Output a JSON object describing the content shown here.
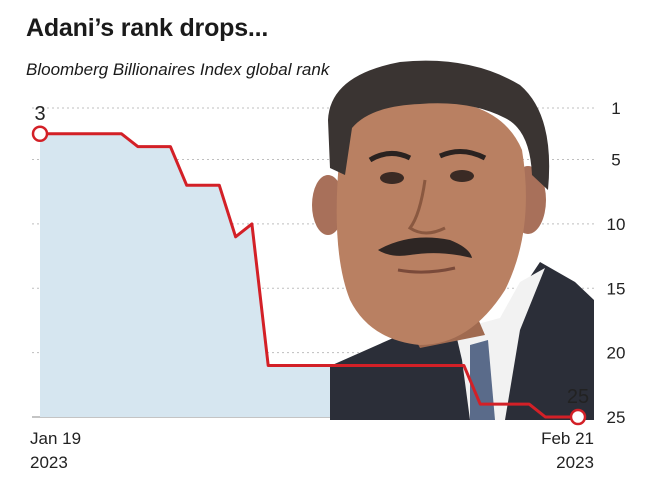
{
  "title": "Adani’s rank drops...",
  "subtitle": "Bloomberg Billionaires Index global rank",
  "colors": {
    "line": "#d32027",
    "area": "#d6e6f0",
    "grid": "#bfbfbf",
    "suit": "#2b2e38",
    "skin": "#b98062",
    "hair": "#3a3432"
  },
  "illustration": {
    "icon": "businessman-portrait-icon"
  },
  "chart_data": {
    "type": "area",
    "ylabel": "Bloomberg Billionaires Index global rank",
    "y_axis": {
      "position": "right",
      "inverted": true,
      "ticks": [
        1,
        5,
        10,
        15,
        20,
        25
      ],
      "range": [
        1,
        25
      ]
    },
    "x_axis": {
      "start_label": [
        "Jan 19",
        "2023"
      ],
      "end_label": [
        "Feb 21",
        "2023"
      ]
    },
    "grid": true,
    "series": [
      {
        "points": [
          {
            "date": "2023-01-19",
            "rank": 3
          },
          {
            "date": "2023-01-24",
            "rank": 3
          },
          {
            "date": "2023-01-25",
            "rank": 4
          },
          {
            "date": "2023-01-27",
            "rank": 4
          },
          {
            "date": "2023-01-28",
            "rank": 7
          },
          {
            "date": "2023-01-30",
            "rank": 7
          },
          {
            "date": "2023-01-31",
            "rank": 11
          },
          {
            "date": "2023-02-01",
            "rank": 10
          },
          {
            "date": "2023-02-02",
            "rank": 21
          },
          {
            "date": "2023-02-14",
            "rank": 21
          },
          {
            "date": "2023-02-15",
            "rank": 24
          },
          {
            "date": "2023-02-18",
            "rank": 24
          },
          {
            "date": "2023-02-19",
            "rank": 25
          },
          {
            "date": "2023-02-21",
            "rank": 25
          }
        ]
      }
    ],
    "data_labels": [
      {
        "date": "2023-01-19",
        "text": "3"
      },
      {
        "date": "2023-02-21",
        "text": "25"
      }
    ]
  }
}
